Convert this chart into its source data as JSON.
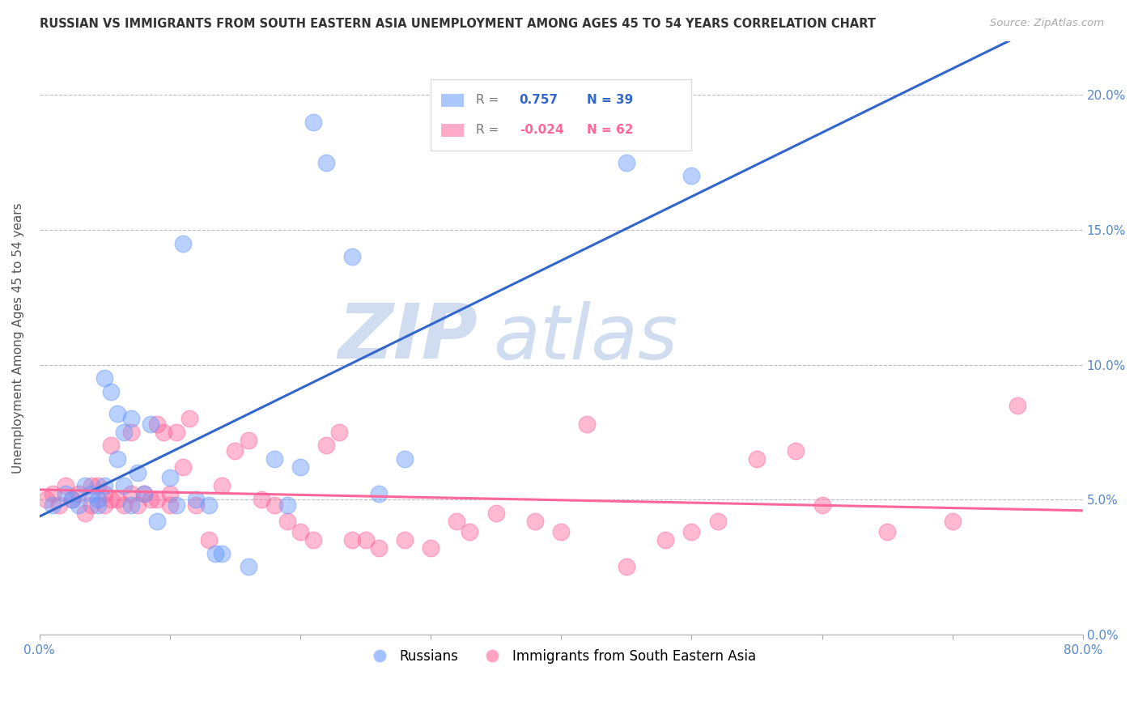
{
  "title": "RUSSIAN VS IMMIGRANTS FROM SOUTH EASTERN ASIA UNEMPLOYMENT AMONG AGES 45 TO 54 YEARS CORRELATION CHART",
  "source": "Source: ZipAtlas.com",
  "ylabel": "Unemployment Among Ages 45 to 54 years",
  "xlim": [
    0.0,
    0.8
  ],
  "ylim": [
    0.0,
    0.22
  ],
  "xticks": [
    0.0,
    0.1,
    0.2,
    0.3,
    0.4,
    0.5,
    0.6,
    0.7,
    0.8
  ],
  "xticklabels_show": [
    "0.0%",
    "",
    "",
    "",
    "",
    "",
    "",
    "",
    "80.0%"
  ],
  "yticks": [
    0.0,
    0.05,
    0.1,
    0.15,
    0.2
  ],
  "yticklabels": [
    "0.0%",
    "5.0%",
    "10.0%",
    "15.0%",
    "20.0%"
  ],
  "legend1_r": "0.757",
  "legend1_n": "39",
  "legend2_r": "-0.024",
  "legend2_n": "62",
  "blue_color": "#6699FF",
  "pink_color": "#FF6699",
  "blue_line_color": "#3366CC",
  "pink_line_color": "#FF6699",
  "tick_color": "#5588CC",
  "russians_x": [
    0.01,
    0.02,
    0.025,
    0.03,
    0.035,
    0.04,
    0.045,
    0.045,
    0.05,
    0.05,
    0.055,
    0.06,
    0.06,
    0.065,
    0.065,
    0.07,
    0.07,
    0.075,
    0.08,
    0.085,
    0.09,
    0.1,
    0.105,
    0.11,
    0.12,
    0.13,
    0.135,
    0.14,
    0.16,
    0.18,
    0.19,
    0.2,
    0.21,
    0.22,
    0.24,
    0.26,
    0.28,
    0.45,
    0.5
  ],
  "russians_y": [
    0.048,
    0.052,
    0.05,
    0.048,
    0.055,
    0.052,
    0.05,
    0.048,
    0.055,
    0.095,
    0.09,
    0.082,
    0.065,
    0.075,
    0.055,
    0.08,
    0.048,
    0.06,
    0.052,
    0.078,
    0.042,
    0.058,
    0.048,
    0.145,
    0.05,
    0.048,
    0.03,
    0.03,
    0.025,
    0.065,
    0.048,
    0.062,
    0.19,
    0.175,
    0.14,
    0.052,
    0.065,
    0.175,
    0.17
  ],
  "sea_x": [
    0.005,
    0.01,
    0.015,
    0.02,
    0.025,
    0.03,
    0.035,
    0.04,
    0.04,
    0.045,
    0.05,
    0.05,
    0.055,
    0.055,
    0.06,
    0.065,
    0.07,
    0.07,
    0.075,
    0.08,
    0.085,
    0.09,
    0.09,
    0.095,
    0.1,
    0.1,
    0.105,
    0.11,
    0.115,
    0.12,
    0.13,
    0.14,
    0.15,
    0.16,
    0.17,
    0.18,
    0.19,
    0.2,
    0.21,
    0.22,
    0.23,
    0.24,
    0.25,
    0.26,
    0.28,
    0.3,
    0.32,
    0.33,
    0.35,
    0.38,
    0.4,
    0.42,
    0.45,
    0.48,
    0.5,
    0.52,
    0.55,
    0.58,
    0.6,
    0.65,
    0.7,
    0.75
  ],
  "sea_y": [
    0.05,
    0.052,
    0.048,
    0.055,
    0.05,
    0.052,
    0.045,
    0.055,
    0.048,
    0.055,
    0.048,
    0.052,
    0.05,
    0.07,
    0.05,
    0.048,
    0.052,
    0.075,
    0.048,
    0.052,
    0.05,
    0.05,
    0.078,
    0.075,
    0.048,
    0.052,
    0.075,
    0.062,
    0.08,
    0.048,
    0.035,
    0.055,
    0.068,
    0.072,
    0.05,
    0.048,
    0.042,
    0.038,
    0.035,
    0.07,
    0.075,
    0.035,
    0.035,
    0.032,
    0.035,
    0.032,
    0.042,
    0.038,
    0.045,
    0.042,
    0.038,
    0.078,
    0.025,
    0.035,
    0.038,
    0.042,
    0.065,
    0.068,
    0.048,
    0.038,
    0.042,
    0.085
  ]
}
